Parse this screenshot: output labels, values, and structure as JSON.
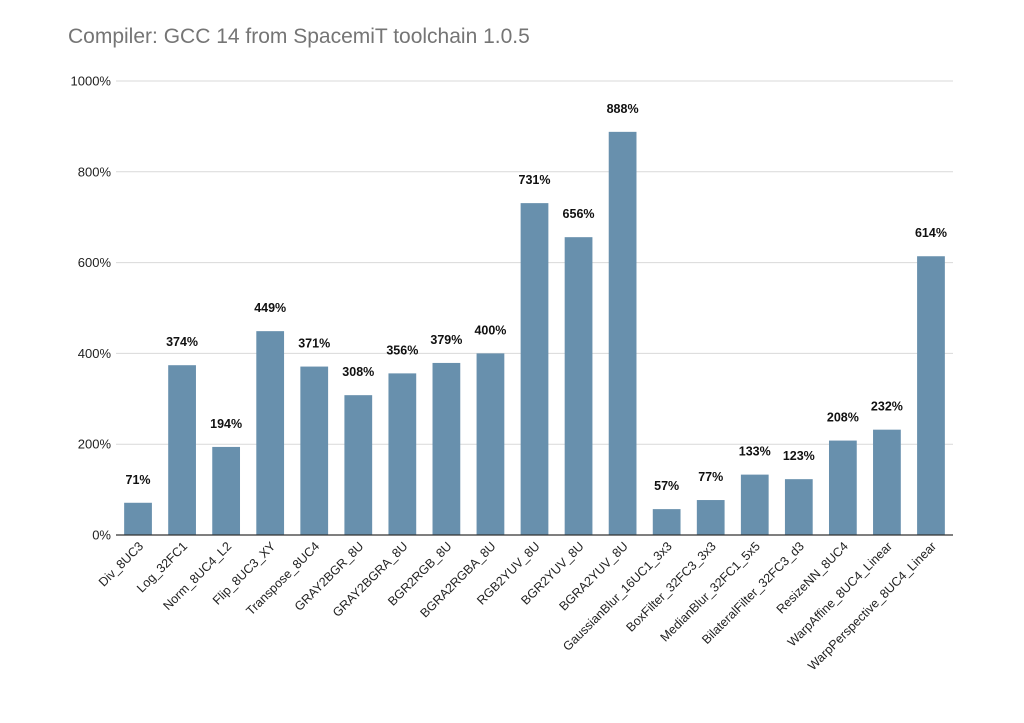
{
  "chart_data": {
    "type": "bar",
    "title": "Compiler: GCC 14 from SpacemiT toolchain 1.0.5",
    "xlabel": "",
    "ylabel": "",
    "categories": [
      "Div_8UC3",
      "Log_32FC1",
      "Norm_8UC4_L2",
      "Flip_8UC3_XY",
      "Transpose_8UC4",
      "GRAY2BGR_8U",
      "GRAY2BGRA_8U",
      "BGR2RGB_8U",
      "BGRA2RGBA_8U",
      "RGB2YUV_8U",
      "BGR2YUV_8U",
      "BGRA2YUV_8U",
      "GaussianBlur_16UC1_3x3",
      "BoxFilter_32FC3_3x3",
      "MedianBlur_32FC1_5x5",
      "BilateralFilter_32FC3_d3",
      "ResizeNN_8UC4",
      "WarpAffine_8UC4_Linear",
      "WarpPerspective_8UC4_Linear"
    ],
    "values": [
      71,
      374,
      194,
      449,
      371,
      308,
      356,
      379,
      400,
      731,
      656,
      888,
      57,
      77,
      133,
      123,
      208,
      232,
      614
    ],
    "data_labels": [
      "71%",
      "374%",
      "194%",
      "449%",
      "371%",
      "308%",
      "356%",
      "379%",
      "400%",
      "731%",
      "656%",
      "888%",
      "57%",
      "77%",
      "133%",
      "123%",
      "208%",
      "232%",
      "614%"
    ],
    "ylim": [
      0,
      1000
    ],
    "yticks": [
      0,
      200,
      400,
      600,
      800,
      1000
    ],
    "ytick_labels": [
      "0%",
      "200%",
      "400%",
      "600%",
      "800%",
      "1000%"
    ],
    "grid": true,
    "legend": "none",
    "bar_color": "#6890ad"
  }
}
